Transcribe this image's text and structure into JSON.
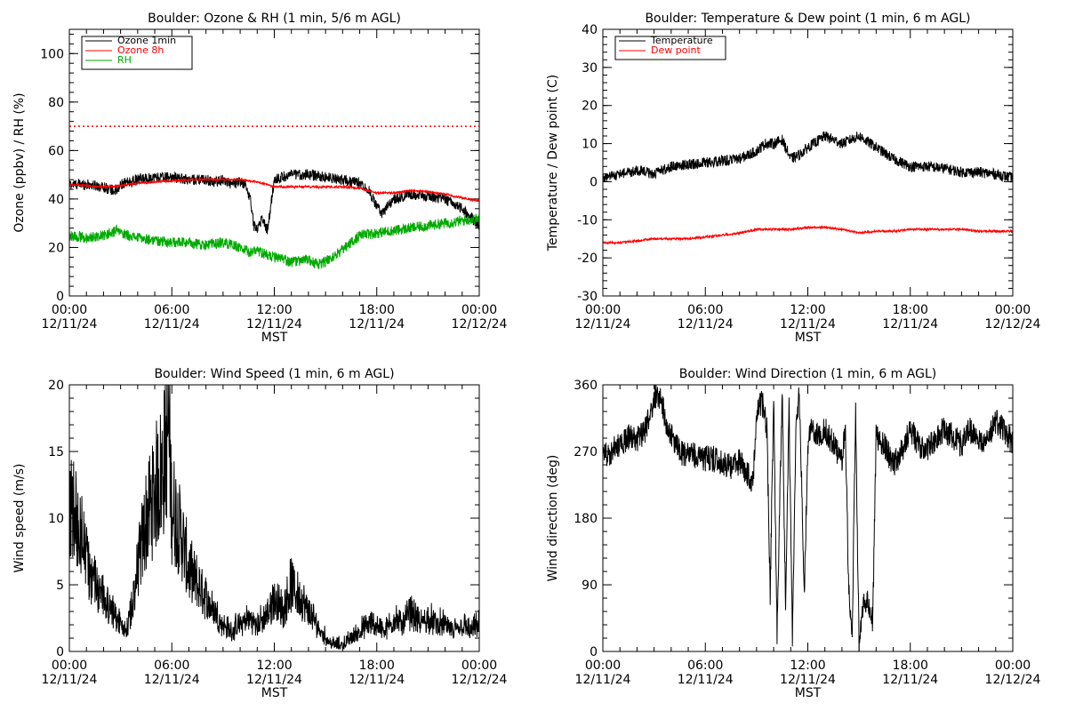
{
  "chart_data": [
    {
      "type": "line",
      "title": "Boulder: Ozone & RH (1 min, 5/6 m AGL)",
      "xlabel": "MST",
      "ylabel": "Ozone (ppbv) / RH (%)",
      "ylim": [
        0,
        110
      ],
      "yticks": [
        0,
        20,
        40,
        60,
        80,
        100
      ],
      "xtick_times": [
        "00:00",
        "06:00",
        "12:00",
        "18:00",
        "00:00"
      ],
      "xtick_dates": [
        "12/11/24",
        "12/11/24",
        "12/11/24",
        "12/11/24",
        "12/12/24"
      ],
      "x_unit": "hours since 00:00 MST 12/11/24",
      "xlim": [
        0,
        24
      ],
      "legend_position": "top-left",
      "reference_line": {
        "y": 70,
        "color": "#ff0000",
        "style": "dotted"
      },
      "series": [
        {
          "name": "Ozone 1min",
          "color": "#000000",
          "x": [
            0,
            1,
            2,
            2.8,
            3,
            4,
            5,
            6,
            7,
            8,
            8.5,
            9,
            9.5,
            10,
            10.3,
            10.6,
            10.8,
            11,
            11.3,
            11.6,
            12,
            12.4,
            13,
            14,
            15,
            16,
            16.5,
            17,
            17.5,
            18,
            18.3,
            19,
            20,
            21,
            22,
            23,
            24
          ],
          "y": [
            46,
            46,
            45,
            43,
            46,
            48,
            49,
            49,
            48,
            48,
            47,
            48,
            46,
            47,
            46,
            40,
            29,
            28,
            32,
            27,
            48,
            49,
            50,
            50,
            49,
            48,
            47,
            47,
            44,
            37,
            34,
            40,
            42,
            41,
            40,
            36,
            29
          ]
        },
        {
          "name": "Ozone 8h",
          "color": "#ff0000",
          "x": [
            0,
            1,
            2,
            3,
            4,
            5,
            6,
            7,
            8,
            9,
            10,
            11,
            12,
            13,
            14,
            15,
            16,
            17,
            18,
            19,
            20,
            21,
            22,
            23,
            24
          ],
          "y": [
            46,
            45.5,
            45,
            45.5,
            46.5,
            47,
            47.5,
            48,
            48,
            48,
            48,
            47,
            45,
            45,
            45,
            45,
            45,
            44.5,
            42.5,
            42.5,
            43.5,
            43,
            42,
            40.5,
            39
          ]
        },
        {
          "name": "RH",
          "color": "#00aa00",
          "x": [
            0,
            1,
            2,
            2.8,
            3,
            4,
            5,
            6,
            7,
            8,
            9,
            10,
            10.5,
            11,
            11.5,
            12,
            13,
            14,
            14.5,
            15,
            16,
            17,
            18,
            19,
            20,
            21,
            22,
            23,
            24
          ],
          "y": [
            25,
            24,
            25,
            27,
            26,
            24,
            23,
            22,
            22,
            21,
            22,
            20,
            18,
            19,
            17,
            16,
            14,
            15,
            13,
            14,
            19,
            25,
            26,
            27,
            28,
            29,
            30,
            31,
            32
          ]
        }
      ]
    },
    {
      "type": "line",
      "title": "Boulder: Temperature & Dew point (1 min, 6 m AGL)",
      "xlabel": "MST",
      "ylabel": "Temperature / Dew point (C)",
      "ylim": [
        -30,
        40
      ],
      "yticks": [
        -30,
        -20,
        -10,
        0,
        10,
        20,
        30,
        40
      ],
      "xtick_times": [
        "00:00",
        "06:00",
        "12:00",
        "18:00",
        "00:00"
      ],
      "xtick_dates": [
        "12/11/24",
        "12/11/24",
        "12/11/24",
        "12/11/24",
        "12/12/24"
      ],
      "xlim": [
        0,
        24
      ],
      "legend_position": "top-left",
      "series": [
        {
          "name": "Temperature",
          "color": "#000000",
          "x": [
            0,
            1,
            2,
            3,
            4,
            5,
            6,
            7,
            8,
            9,
            9.5,
            10,
            10.5,
            11,
            11.5,
            12,
            13,
            13.5,
            14,
            15,
            16,
            17,
            18,
            19,
            20,
            21,
            22,
            23,
            24
          ],
          "y": [
            1,
            2,
            3,
            2,
            4,
            4.5,
            5,
            5.5,
            6,
            8,
            10,
            10,
            11,
            6,
            7,
            9,
            12,
            11,
            10,
            12,
            9,
            6,
            4,
            4,
            3.5,
            2.5,
            2.5,
            2,
            1
          ]
        },
        {
          "name": "Dew point",
          "color": "#ff0000",
          "x": [
            0,
            1,
            2,
            3,
            4,
            5,
            6,
            7,
            8,
            9,
            10,
            11,
            12,
            13,
            14,
            15,
            16,
            17,
            18,
            19,
            20,
            21,
            22,
            23,
            24
          ],
          "y": [
            -16,
            -16,
            -15.5,
            -15,
            -15,
            -15,
            -14.5,
            -14,
            -13.5,
            -12.5,
            -12.5,
            -12.5,
            -12,
            -12,
            -12.5,
            -13.5,
            -13,
            -13,
            -12.5,
            -12.5,
            -12.5,
            -12.5,
            -13,
            -13,
            -13
          ]
        }
      ]
    },
    {
      "type": "line",
      "title": "Boulder: Wind Speed (1 min, 6 m AGL)",
      "xlabel": "MST",
      "ylabel": "Wind speed (m/s)",
      "ylim": [
        0,
        20
      ],
      "yticks": [
        0,
        5,
        10,
        15,
        20
      ],
      "xtick_times": [
        "00:00",
        "06:00",
        "12:00",
        "18:00",
        "00:00"
      ],
      "xtick_dates": [
        "12/11/24",
        "12/11/24",
        "12/11/24",
        "12/11/24",
        "12/12/24"
      ],
      "xlim": [
        0,
        24
      ],
      "series": [
        {
          "name": "",
          "color": "#000000",
          "x": [
            0,
            0.3,
            0.6,
            1,
            1.5,
            2,
            2.5,
            3,
            3.3,
            3.6,
            4,
            4.5,
            5,
            5.5,
            5.8,
            6,
            6.5,
            7,
            7.5,
            8,
            8.5,
            9,
            9.5,
            10,
            10.5,
            11,
            11.5,
            12,
            12.5,
            13,
            13.5,
            14,
            14.5,
            15,
            15.5,
            16,
            16.5,
            17,
            17.5,
            18,
            18.5,
            19,
            19.5,
            20,
            20.5,
            21,
            21.5,
            22,
            22.5,
            23,
            23.5,
            24
          ],
          "y": [
            12,
            10,
            9,
            7,
            5,
            4,
            3,
            2,
            1.5,
            3,
            6,
            10,
            12,
            14,
            17,
            11,
            9,
            6,
            5,
            4,
            3,
            2,
            1.5,
            2,
            2.5,
            2,
            2.5,
            4,
            3,
            5,
            4,
            3,
            2,
            1,
            0.5,
            0.5,
            1,
            1.5,
            2,
            2,
            1.5,
            2.5,
            2,
            3,
            2,
            2.5,
            2,
            2,
            1.5,
            2,
            1.5,
            2
          ]
        }
      ]
    },
    {
      "type": "line",
      "title": "Boulder: Wind Direction (1 min, 6 m AGL)",
      "xlabel": "MST",
      "ylabel": "Wind direction (deg)",
      "ylim": [
        0,
        360
      ],
      "yticks": [
        0,
        90,
        180,
        270,
        360
      ],
      "xtick_times": [
        "00:00",
        "06:00",
        "12:00",
        "18:00",
        "00:00"
      ],
      "xtick_dates": [
        "12/11/24",
        "12/11/24",
        "12/11/24",
        "12/11/24",
        "12/12/24"
      ],
      "xlim": [
        0,
        24
      ],
      "series": [
        {
          "name": "",
          "color": "#000000",
          "x": [
            0,
            0.5,
            1,
            1.5,
            2,
            2.5,
            2.8,
            3,
            3.2,
            3.5,
            3.8,
            4,
            4.5,
            5,
            5.5,
            6,
            6.5,
            7,
            7.5,
            8,
            8.5,
            8.8,
            9,
            9.3,
            9.6,
            9.8,
            10,
            10.2,
            10.5,
            10.7,
            10.9,
            11.1,
            11.3,
            11.5,
            11.8,
            12,
            12.2,
            12.5,
            13,
            13.5,
            14,
            14.2,
            14.4,
            14.6,
            14.8,
            15,
            15.2,
            15.5,
            15.8,
            16,
            16.5,
            17,
            17.5,
            18,
            18.5,
            19,
            19.5,
            20,
            20.5,
            21,
            21.5,
            22,
            22.5,
            23,
            23.5,
            24
          ],
          "y": [
            265,
            270,
            280,
            290,
            285,
            300,
            320,
            340,
            350,
            330,
            300,
            290,
            270,
            265,
            265,
            260,
            260,
            255,
            250,
            255,
            240,
            230,
            320,
            340,
            300,
            80,
            340,
            20,
            350,
            60,
            330,
            10,
            300,
            350,
            80,
            280,
            300,
            290,
            300,
            280,
            260,
            300,
            80,
            30,
            320,
            10,
            60,
            70,
            40,
            290,
            280,
            250,
            270,
            300,
            280,
            270,
            290,
            300,
            290,
            280,
            300,
            280,
            290,
            310,
            300,
            280
          ]
        }
      ]
    }
  ]
}
